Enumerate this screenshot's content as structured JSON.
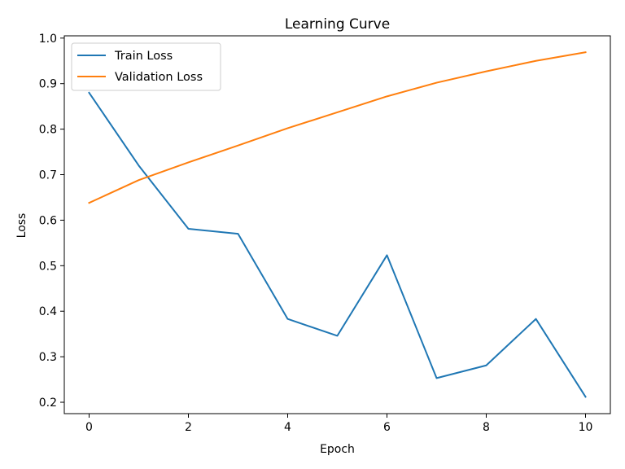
{
  "chart_data": {
    "type": "line",
    "title": "Learning Curve",
    "xlabel": "Epoch",
    "ylabel": "Loss",
    "x": [
      0,
      1,
      2,
      3,
      4,
      5,
      6,
      7,
      8,
      9,
      10
    ],
    "xlim": [
      -0.5,
      10.5
    ],
    "ylim": [
      0.175,
      1.005
    ],
    "xticks": [
      0,
      2,
      4,
      6,
      8,
      10
    ],
    "yticks": [
      0.2,
      0.3,
      0.4,
      0.5,
      0.6,
      0.7,
      0.8,
      0.9,
      1.0
    ],
    "grid": false,
    "legend_position": "top-left",
    "series": [
      {
        "name": "Train Loss",
        "color": "#1f77b4",
        "values": [
          0.88,
          0.72,
          0.581,
          0.57,
          0.383,
          0.346,
          0.523,
          0.253,
          0.281,
          0.383,
          0.212
        ]
      },
      {
        "name": "Validation Loss",
        "color": "#ff7f0e",
        "values": [
          0.638,
          0.688,
          0.727,
          0.764,
          0.802,
          0.837,
          0.872,
          0.902,
          0.927,
          0.95,
          0.969
        ]
      }
    ]
  }
}
